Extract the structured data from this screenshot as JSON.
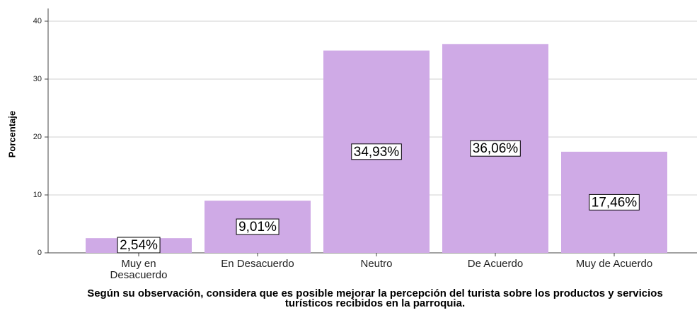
{
  "chart_data": {
    "type": "bar",
    "x_label": "Según su observación, considera que es posible mejorar la percepción del turista sobre los productos y servicios turísticos recibidos en la parroquia.",
    "y_label": "Porcentaje",
    "categories": [
      "Muy en Desacuerdo",
      "En Desacuerdo",
      "Neutro",
      "De Acuerdo",
      "Muy de Acuerdo"
    ],
    "values": [
      2.54,
      9.01,
      34.93,
      36.06,
      17.46
    ],
    "value_labels": [
      "2,54%",
      "9,01%",
      "34,93%",
      "36,06%",
      "17,46%"
    ],
    "color": "#cfaae6",
    "ylim": [
      0,
      40
    ],
    "yticks": [
      0,
      10,
      20,
      30,
      40
    ],
    "grid": true
  }
}
